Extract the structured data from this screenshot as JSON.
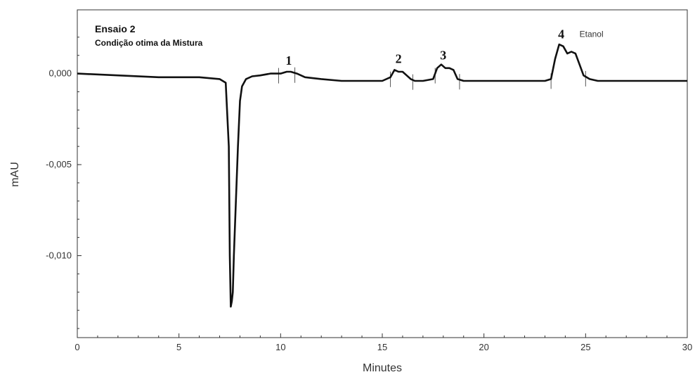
{
  "chart_data": {
    "type": "line",
    "title": "Ensaio 2",
    "subtitle": "Condição otima da Mistura",
    "xlabel": "Minutes",
    "ylabel": "mAU",
    "xlim": [
      0,
      30
    ],
    "ylim": [
      -0.0145,
      0.0035
    ],
    "x_ticks": [
      0,
      5,
      10,
      15,
      20,
      25,
      30
    ],
    "x_tick_labels": [
      "0",
      "5",
      "10",
      "15",
      "20",
      "25",
      "30"
    ],
    "y_ticks": [
      0.0,
      -0.005,
      -0.01
    ],
    "y_tick_labels": [
      "0,000",
      "-0,005",
      "-0,010"
    ],
    "grid": false,
    "series": [
      {
        "x": [
          0,
          2,
          4,
          6,
          7.0,
          7.3,
          7.45,
          7.5,
          7.55,
          7.6,
          7.65,
          7.7,
          7.8,
          7.9,
          8.0,
          8.1,
          8.3,
          8.6,
          9.0,
          9.5,
          10.0,
          10.3,
          10.5,
          10.8,
          11.2,
          12,
          13,
          14,
          15,
          15.4,
          15.6,
          15.8,
          16.0,
          16.2,
          16.4,
          16.6,
          17.0,
          17.5,
          17.7,
          17.9,
          18.1,
          18.3,
          18.5,
          18.7,
          19.0,
          20,
          21,
          22,
          23,
          23.3,
          23.5,
          23.7,
          23.9,
          24.1,
          24.3,
          24.5,
          24.7,
          24.9,
          25.2,
          25.6,
          26,
          27,
          28,
          29,
          30
        ],
        "y": [
          0.0,
          -0.0001,
          -0.0002,
          -0.0002,
          -0.0003,
          -0.0005,
          -0.004,
          -0.01,
          -0.0128,
          -0.0125,
          -0.012,
          -0.01,
          -0.007,
          -0.004,
          -0.0015,
          -0.0007,
          -0.0003,
          -0.00015,
          -0.0001,
          0.0,
          0.0,
          0.0001,
          0.0001,
          0.0,
          -0.0002,
          -0.0003,
          -0.0004,
          -0.0004,
          -0.0004,
          -0.0002,
          0.0002,
          0.0001,
          0.0001,
          -0.0001,
          -0.0003,
          -0.0004,
          -0.0004,
          -0.0003,
          0.0003,
          0.0005,
          0.0003,
          0.0003,
          0.0002,
          -0.0003,
          -0.0004,
          -0.0004,
          -0.0004,
          -0.0004,
          -0.0004,
          -0.0003,
          0.0008,
          0.0016,
          0.0015,
          0.0011,
          0.0012,
          0.0011,
          0.0005,
          -0.0001,
          -0.0003,
          -0.0004,
          -0.0004,
          -0.0004,
          -0.0004,
          -0.0004,
          -0.0004
        ]
      }
    ],
    "peak_labels": [
      {
        "label": "1",
        "x": 10.4
      },
      {
        "label": "2",
        "x": 15.8
      },
      {
        "label": "3",
        "x": 18.0
      },
      {
        "label": "4",
        "x": 23.8,
        "name": "Etanol"
      }
    ],
    "integration_marks": [
      9.9,
      10.7,
      15.4,
      16.5,
      17.6,
      18.8,
      23.3,
      25.0
    ]
  }
}
